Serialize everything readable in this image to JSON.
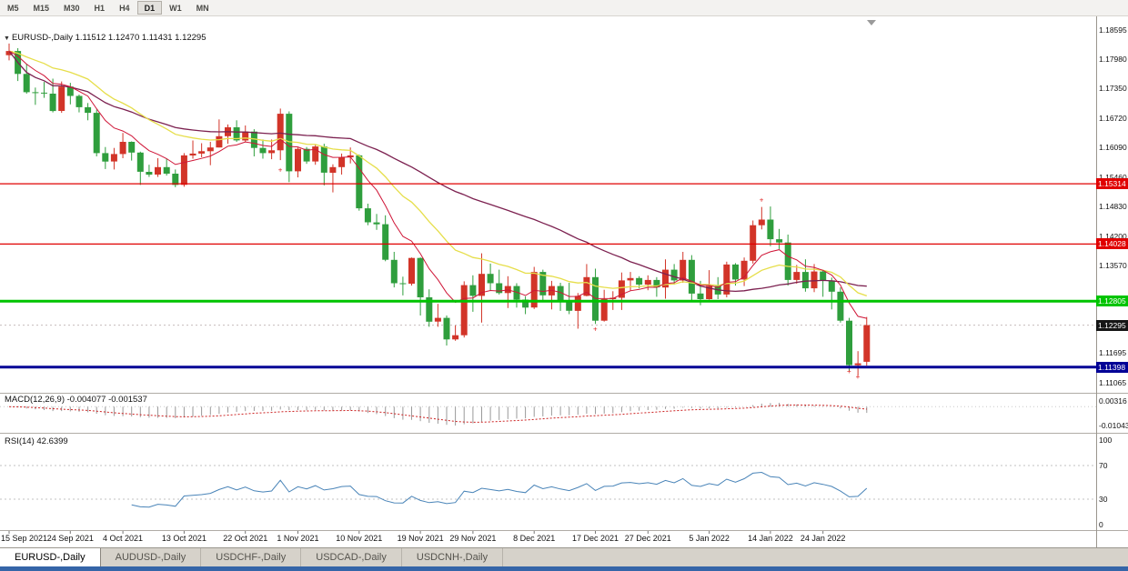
{
  "toolbar": {
    "timeframes": [
      "M5",
      "M15",
      "M30",
      "H1",
      "H4",
      "D1",
      "W1",
      "MN"
    ],
    "active": "D1"
  },
  "chart_header": {
    "dropdown_icon": "▼",
    "symbol": "EURUSD-,Daily",
    "ohlc": "1.11512 1.12470 1.11431 1.12295"
  },
  "indicators": {
    "macd": {
      "name": "MACD(12,26,9)",
      "value_main": "-0.004077",
      "value_signal": "-0.001537"
    },
    "rsi": {
      "name": "RSI(14)",
      "value": "42.6399"
    }
  },
  "tabs": [
    {
      "label": "EURUSD-,Daily",
      "active": true
    },
    {
      "label": "AUDUSD-,Daily",
      "active": false
    },
    {
      "label": "USDCHF-,Daily",
      "active": false
    },
    {
      "label": "USDCAD-,Daily",
      "active": false
    },
    {
      "label": "USDCNH-,Daily",
      "active": false
    }
  ],
  "chart_data": {
    "type": "candlestick",
    "title": "EURUSD-,Daily",
    "ylim": [
      1.1085,
      1.1889
    ],
    "colors": {
      "bull": "#d23428",
      "bear": "#2f9e3d",
      "ma_fast": "#cf1537",
      "ma_mid": "#e6de4a",
      "ma_slow": "#7c2150",
      "macd_hist": "#9a9a9a",
      "macd_signal": "#cc2222",
      "rsi_line": "#4984b8"
    },
    "candles": [
      [
        1.1806,
        1.1831,
        1.1795,
        1.1815
      ],
      [
        1.1815,
        1.1821,
        1.1751,
        1.1766
      ],
      [
        1.1766,
        1.1788,
        1.1724,
        1.1727
      ],
      [
        1.1727,
        1.1737,
        1.17,
        1.1726
      ],
      [
        1.1726,
        1.1749,
        1.1715,
        1.1724
      ],
      [
        1.1724,
        1.1756,
        1.1684,
        1.1687
      ],
      [
        1.1687,
        1.175,
        1.1683,
        1.1739
      ],
      [
        1.1739,
        1.1747,
        1.1701,
        1.1719
      ],
      [
        1.1719,
        1.1722,
        1.1684,
        1.1695
      ],
      [
        1.1695,
        1.1704,
        1.1667,
        1.1683
      ],
      [
        1.1683,
        1.169,
        1.159,
        1.1597
      ],
      [
        1.1597,
        1.161,
        1.1563,
        1.1579
      ],
      [
        1.1579,
        1.1608,
        1.1562,
        1.1595
      ],
      [
        1.1595,
        1.164,
        1.1586,
        1.1621
      ],
      [
        1.1621,
        1.1622,
        1.1581,
        1.1598
      ],
      [
        1.1598,
        1.16,
        1.1529,
        1.1557
      ],
      [
        1.1557,
        1.1572,
        1.1546,
        1.1551
      ],
      [
        1.1551,
        1.1586,
        1.1546,
        1.1567
      ],
      [
        1.1567,
        1.1585,
        1.1549,
        1.1553
      ],
      [
        1.1553,
        1.1562,
        1.1524,
        1.1529
      ],
      [
        1.1529,
        1.1597,
        1.1525,
        1.1592
      ],
      [
        1.1592,
        1.1624,
        1.1585,
        1.1596
      ],
      [
        1.1596,
        1.1618,
        1.1588,
        1.1601
      ],
      [
        1.1601,
        1.1621,
        1.1571,
        1.1609
      ],
      [
        1.1609,
        1.1669,
        1.1609,
        1.1633
      ],
      [
        1.1633,
        1.1658,
        1.1617,
        1.1652
      ],
      [
        1.1652,
        1.1667,
        1.1621,
        1.1624
      ],
      [
        1.1624,
        1.1656,
        1.162,
        1.1643
      ],
      [
        1.1643,
        1.1648,
        1.159,
        1.1608
      ],
      [
        1.1608,
        1.1626,
        1.1585,
        1.1597
      ],
      [
        1.1597,
        1.1626,
        1.1584,
        1.1603
      ],
      [
        1.1603,
        1.1692,
        1.1582,
        1.1681
      ],
      [
        1.1681,
        1.1686,
        1.1535,
        1.1558
      ],
      [
        1.1558,
        1.1609,
        1.1545,
        1.1606
      ],
      [
        1.1606,
        1.161,
        1.1574,
        1.1579
      ],
      [
        1.1579,
        1.1616,
        1.1572,
        1.1611
      ],
      [
        1.1611,
        1.1617,
        1.1528,
        1.1555
      ],
      [
        1.1555,
        1.1573,
        1.1513,
        1.1567
      ],
      [
        1.1567,
        1.1596,
        1.1551,
        1.1588
      ],
      [
        1.1588,
        1.1609,
        1.1575,
        1.1592
      ],
      [
        1.1592,
        1.1594,
        1.1474,
        1.1479
      ],
      [
        1.1479,
        1.1489,
        1.1443,
        1.1449
      ],
      [
        1.1449,
        1.1467,
        1.1433,
        1.1445
      ],
      [
        1.1445,
        1.1464,
        1.1366,
        1.1369
      ],
      [
        1.1369,
        1.1386,
        1.131,
        1.1319
      ],
      [
        1.1319,
        1.1333,
        1.1293,
        1.1318
      ],
      [
        1.1318,
        1.1374,
        1.1314,
        1.1373
      ],
      [
        1.1373,
        1.1374,
        1.125,
        1.1289
      ],
      [
        1.1289,
        1.1306,
        1.1226,
        1.1237
      ],
      [
        1.1237,
        1.1275,
        1.1226,
        1.1245
      ],
      [
        1.1245,
        1.125,
        1.1186,
        1.1199
      ],
      [
        1.1199,
        1.1229,
        1.1196,
        1.1208
      ],
      [
        1.1208,
        1.1323,
        1.1203,
        1.1315
      ],
      [
        1.1315,
        1.1336,
        1.1258,
        1.1292
      ],
      [
        1.1292,
        1.1383,
        1.1235,
        1.1339
      ],
      [
        1.1339,
        1.1361,
        1.1303,
        1.1319
      ],
      [
        1.1319,
        1.1348,
        1.1295,
        1.1298
      ],
      [
        1.1298,
        1.1334,
        1.1266,
        1.1313
      ],
      [
        1.1313,
        1.1319,
        1.1267,
        1.1284
      ],
      [
        1.1284,
        1.1291,
        1.1253,
        1.1267
      ],
      [
        1.1267,
        1.1354,
        1.1264,
        1.1343
      ],
      [
        1.1343,
        1.1348,
        1.1279,
        1.1293
      ],
      [
        1.1293,
        1.1324,
        1.1263,
        1.1313
      ],
      [
        1.1313,
        1.132,
        1.126,
        1.1283
      ],
      [
        1.1283,
        1.132,
        1.1253,
        1.126
      ],
      [
        1.126,
        1.1298,
        1.1222,
        1.1292
      ],
      [
        1.1292,
        1.136,
        1.1291,
        1.1332
      ],
      [
        1.1332,
        1.135,
        1.1232,
        1.1239
      ],
      [
        1.1239,
        1.1305,
        1.1237,
        1.1285
      ],
      [
        1.1285,
        1.1302,
        1.1262,
        1.1288
      ],
      [
        1.1288,
        1.1342,
        1.1262,
        1.1325
      ],
      [
        1.1325,
        1.1343,
        1.1303,
        1.133
      ],
      [
        1.133,
        1.1334,
        1.1308,
        1.1316
      ],
      [
        1.1316,
        1.1336,
        1.1304,
        1.1326
      ],
      [
        1.1326,
        1.1332,
        1.129,
        1.131
      ],
      [
        1.131,
        1.137,
        1.1286,
        1.1348
      ],
      [
        1.1348,
        1.136,
        1.1316,
        1.1325
      ],
      [
        1.1325,
        1.1386,
        1.132,
        1.1369
      ],
      [
        1.1369,
        1.1379,
        1.1279,
        1.1297
      ],
      [
        1.1297,
        1.1324,
        1.1272,
        1.1285
      ],
      [
        1.1285,
        1.1347,
        1.1284,
        1.1313
      ],
      [
        1.1313,
        1.1332,
        1.1285,
        1.1295
      ],
      [
        1.1295,
        1.1365,
        1.1289,
        1.1359
      ],
      [
        1.1359,
        1.1362,
        1.1314,
        1.1327
      ],
      [
        1.1327,
        1.1374,
        1.1313,
        1.1367
      ],
      [
        1.1367,
        1.1453,
        1.1361,
        1.1443
      ],
      [
        1.1443,
        1.1482,
        1.1434,
        1.1455
      ],
      [
        1.1455,
        1.1483,
        1.1398,
        1.1413
      ],
      [
        1.1413,
        1.1435,
        1.1392,
        1.1406
      ],
      [
        1.1406,
        1.1423,
        1.1314,
        1.1326
      ],
      [
        1.1326,
        1.1358,
        1.1318,
        1.1343
      ],
      [
        1.1343,
        1.137,
        1.1301,
        1.1308
      ],
      [
        1.1308,
        1.136,
        1.13,
        1.1344
      ],
      [
        1.1344,
        1.1348,
        1.129,
        1.1325
      ],
      [
        1.1325,
        1.1331,
        1.1263,
        1.1301
      ],
      [
        1.1301,
        1.131,
        1.1235,
        1.1239
      ],
      [
        1.1239,
        1.1245,
        1.1131,
        1.1144
      ],
      [
        1.1144,
        1.1174,
        1.1121,
        1.1148
      ],
      [
        1.11512,
        1.1247,
        1.11431,
        1.12295
      ]
    ],
    "date_labels": [
      {
        "i": 0,
        "t": "15 Sep 2021"
      },
      {
        "i": 7,
        "t": "24 Sep 2021"
      },
      {
        "i": 13,
        "t": "4 Oct 2021"
      },
      {
        "i": 20,
        "t": "13 Oct 2021"
      },
      {
        "i": 27,
        "t": "22 Oct 2021"
      },
      {
        "i": 33,
        "t": "1 Nov 2021"
      },
      {
        "i": 40,
        "t": "10 Nov 2021"
      },
      {
        "i": 47,
        "t": "19 Nov 2021"
      },
      {
        "i": 53,
        "t": "29 Nov 2021"
      },
      {
        "i": 60,
        "t": "8 Dec 2021"
      },
      {
        "i": 67,
        "t": "17 Dec 2021"
      },
      {
        "i": 73,
        "t": "27 Dec 2021"
      },
      {
        "i": 80,
        "t": "5 Jan 2022"
      },
      {
        "i": 87,
        "t": "14 Jan 2022"
      },
      {
        "i": 93,
        "t": "24 Jan 2022"
      }
    ],
    "y_ticks": [
      "1.18595",
      "1.17980",
      "1.17350",
      "1.16720",
      "1.16090",
      "1.15460",
      "1.14830",
      "1.14200",
      "1.13570",
      "1.11695",
      "1.11065"
    ],
    "h_lines": [
      {
        "price": 1.15314,
        "label": "1.15314",
        "color": "#e00000",
        "width": 1.2
      },
      {
        "price": 1.14028,
        "label": "1.14028",
        "color": "#e00000",
        "width": 1.2
      },
      {
        "price": 1.12805,
        "label": "1.12805",
        "color": "#00c400",
        "width": 3
      },
      {
        "price": 1.11398,
        "label": "1.11398",
        "color": "#000096",
        "width": 3
      }
    ],
    "current_price": {
      "price": 1.12295,
      "label": "1.12295",
      "color": "#151515"
    },
    "markers": [
      {
        "i": 31,
        "price": 1.1562
      },
      {
        "i": 67,
        "price": 1.1222
      },
      {
        "i": 86,
        "price": 1.1498
      },
      {
        "i": 96,
        "price": 1.1132
      },
      {
        "i": 97,
        "price": 1.112
      }
    ],
    "macd": {
      "params": [
        12,
        26,
        9
      ],
      "axis_top_label": "0.00316",
      "axis_bottom_label": "-0.01043"
    },
    "rsi": {
      "period": 14,
      "levels": [
        70,
        30
      ],
      "axis_labels": [
        "100",
        "70",
        "30",
        "0"
      ]
    }
  }
}
